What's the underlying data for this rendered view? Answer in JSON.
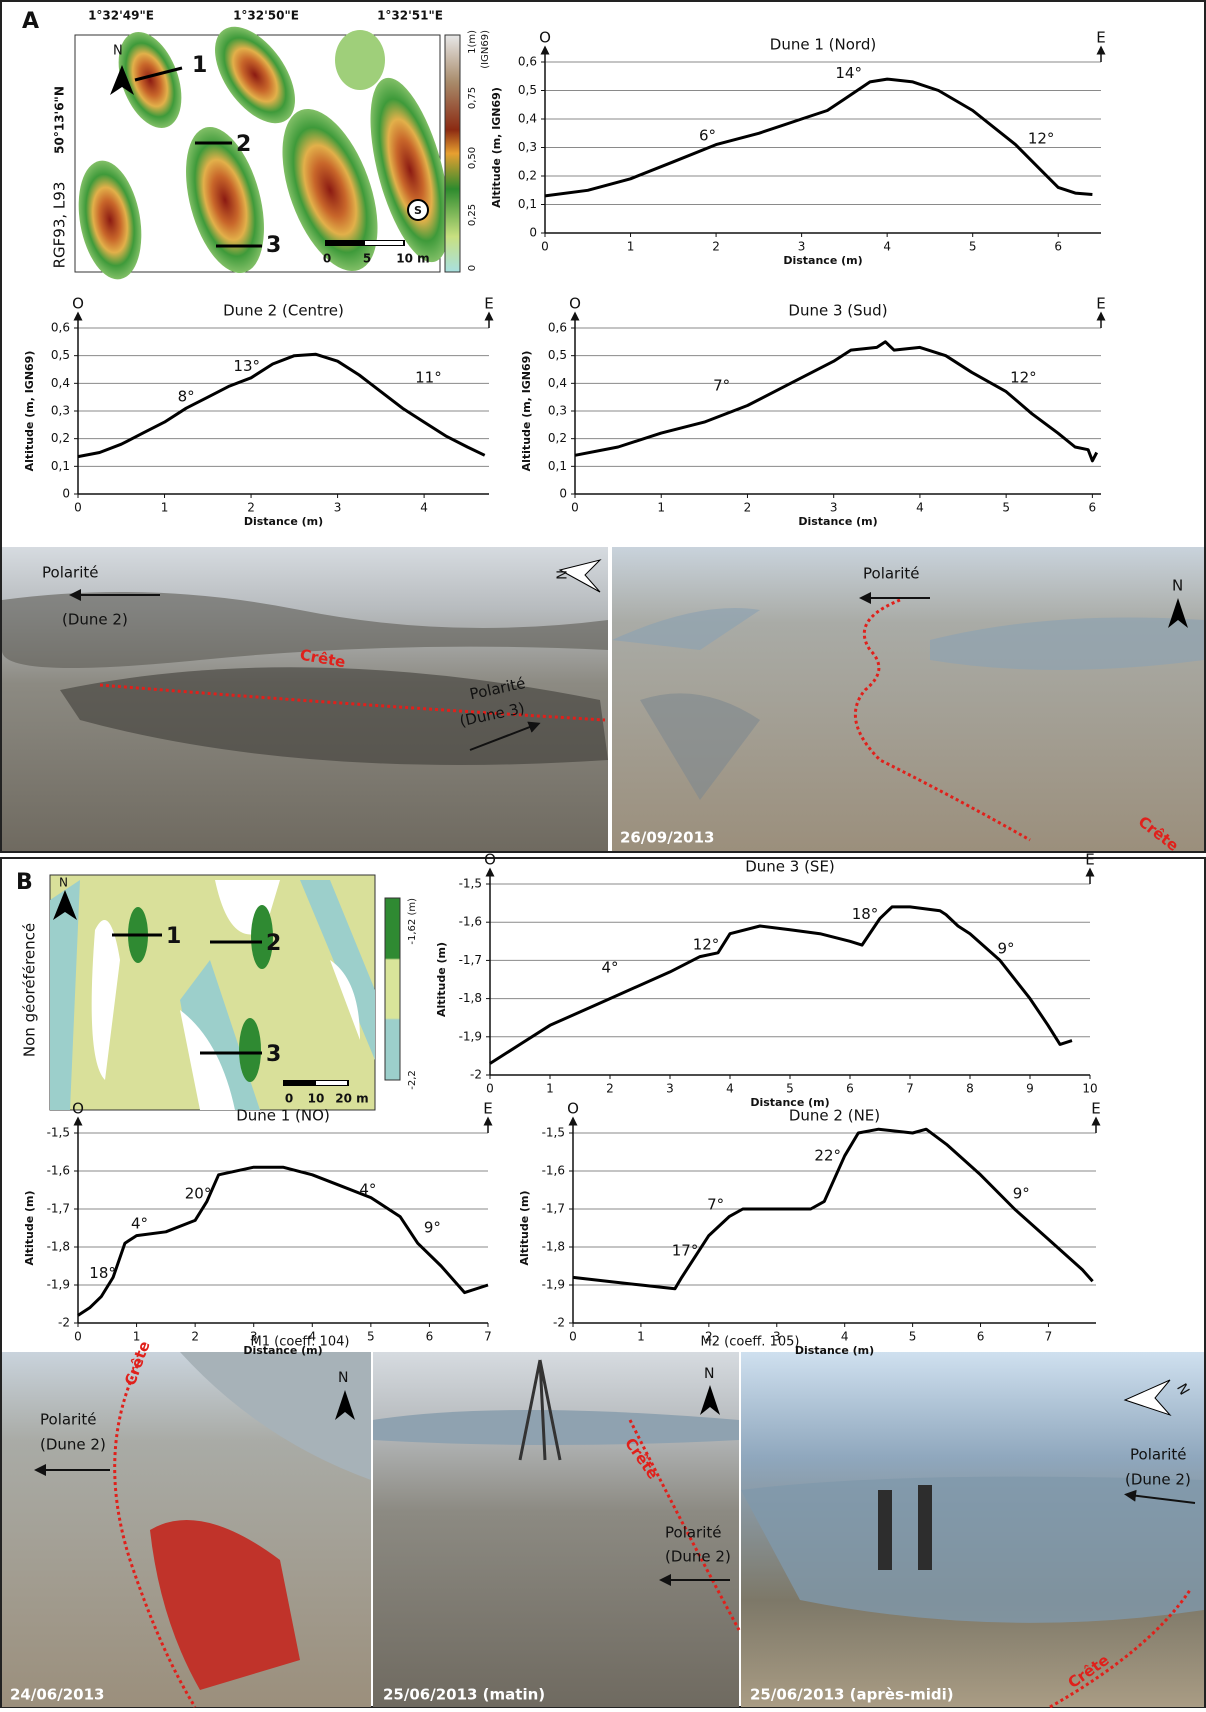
{
  "panel_a": {
    "letter": "A",
    "map": {
      "lon_labels": [
        "1°32'49\"E",
        "1°32'50\"E",
        "1°32'51\"E"
      ],
      "lat_label": "50°13'6\"N",
      "crs": "RGF93, L93",
      "colorbar": {
        "unit": "1(m)",
        "datum": "(IGN69)",
        "labels": [
          "0,75",
          "0,50",
          "0,25",
          "0"
        ]
      },
      "scale": [
        "0",
        "5",
        "10 m"
      ],
      "profiles": [
        "1",
        "2",
        "3"
      ],
      "north": "N",
      "marker": "S"
    },
    "photos": [
      {
        "polarity": "Polarité",
        "dune": "(Dune 2)",
        "crest": "Crête",
        "polarity_2": "Polarité",
        "dune_2": "(Dune 3)",
        "north": "N"
      },
      {
        "polarity": "Polarité",
        "crest": "Crête",
        "date": "26/09/2013",
        "north": "N"
      }
    ]
  },
  "panel_b": {
    "letter": "B",
    "map": {
      "note": "Non géoréférencé",
      "colorbar": {
        "top": "-1,62 (m)",
        "bottom": "-2,2"
      },
      "scale": [
        "0",
        "10",
        "20 m"
      ],
      "profiles": [
        "1",
        "2",
        "3"
      ],
      "north": "N"
    },
    "captions": [
      "M1 (coeff. 104)",
      "M2 (coeff. 105)"
    ],
    "photos": [
      {
        "crest": "Crête",
        "polarity": "Polarité",
        "dune": "(Dune 2)",
        "date": "24/06/2013",
        "north": "N"
      },
      {
        "crest": "Crête",
        "polarity": "Polarité",
        "dune": "(Dune 2)",
        "date": "25/06/2013 (matin)",
        "north": "N"
      },
      {
        "polarity": "Polarité",
        "dune": "(Dune 2)",
        "crest": "Crête",
        "date": "25/06/2013 (après-midi)",
        "north": "N"
      }
    ]
  },
  "chart_data": [
    {
      "type": "line",
      "title": "Dune 1 (Nord)",
      "left_label": "O",
      "right_label": "E",
      "ylabel": "Altitude (m, IGN69)",
      "xlabel": "Distance (m)",
      "color": "#000000",
      "grid": true,
      "x": [
        0,
        0.5,
        1,
        1.5,
        2,
        2.5,
        3,
        3.3,
        3.5,
        3.8,
        4,
        4.3,
        4.6,
        5,
        5.5,
        5.8,
        6,
        6.2,
        6.4
      ],
      "values": [
        0.13,
        0.15,
        0.19,
        0.25,
        0.31,
        0.35,
        0.4,
        0.43,
        0.47,
        0.53,
        0.54,
        0.53,
        0.5,
        0.43,
        0.31,
        0.22,
        0.16,
        0.14,
        0.135
      ],
      "annotations": [
        "6°",
        "14°",
        "12°"
      ],
      "xlim": [
        0,
        6.5
      ],
      "ylim": [
        0,
        0.6
      ],
      "xticks": [
        0,
        1,
        2,
        3,
        4,
        5,
        6
      ],
      "yticks": [
        0,
        {
          "value": 0.1,
          "label": "0,1"
        },
        {
          "value": 0.2,
          "label": "0,2"
        },
        {
          "value": 0.3,
          "label": "0,3"
        },
        {
          "value": 0.4,
          "label": "0,4"
        },
        {
          "value": 0.5,
          "label": "0,5"
        },
        {
          "value": 0.6,
          "label": "0,6"
        }
      ]
    },
    {
      "type": "line",
      "title": "Dune 2 (Centre)",
      "left_label": "O",
      "right_label": "E",
      "ylabel": "Altitude (m, IGN69)",
      "xlabel": "Distance (m)",
      "color": "#000000",
      "grid": true,
      "x": [
        0,
        0.25,
        0.5,
        0.75,
        1,
        1.25,
        1.5,
        1.75,
        2,
        2.25,
        2.5,
        2.75,
        3,
        3.25,
        3.5,
        3.75,
        4,
        4.25,
        4.5,
        4.7
      ],
      "values": [
        0.135,
        0.15,
        0.18,
        0.22,
        0.26,
        0.31,
        0.35,
        0.39,
        0.42,
        0.47,
        0.5,
        0.505,
        0.48,
        0.43,
        0.37,
        0.31,
        0.26,
        0.21,
        0.17,
        0.14
      ],
      "annotations": [
        "8°",
        "13°",
        "11°"
      ],
      "xlim": [
        0,
        4.75
      ],
      "ylim": [
        0,
        0.6
      ],
      "xticks": [
        0,
        1,
        2,
        3,
        4
      ],
      "yticks": [
        0,
        {
          "value": 0.1,
          "label": "0,1"
        },
        {
          "value": 0.2,
          "label": "0,2"
        },
        {
          "value": 0.3,
          "label": "0,3"
        },
        {
          "value": 0.4,
          "label": "0,4"
        },
        {
          "value": 0.5,
          "label": "0,5"
        },
        {
          "value": 0.6,
          "label": "0,6"
        }
      ]
    },
    {
      "type": "line",
      "title": "Dune 3 (Sud)",
      "left_label": "O",
      "right_label": "E",
      "ylabel": "Altitude (m, IGN69)",
      "xlabel": "Distance (m)",
      "color": "#000000",
      "grid": true,
      "x": [
        0,
        0.5,
        1,
        1.5,
        2,
        2.5,
        3,
        3.2,
        3.5,
        3.6,
        3.7,
        4,
        4.3,
        4.6,
        5,
        5.3,
        5.6,
        5.8,
        5.95,
        6,
        6.05
      ],
      "values": [
        0.14,
        0.17,
        0.22,
        0.26,
        0.32,
        0.4,
        0.48,
        0.52,
        0.53,
        0.55,
        0.52,
        0.53,
        0.5,
        0.44,
        0.37,
        0.29,
        0.22,
        0.17,
        0.16,
        0.12,
        0.15
      ],
      "annotations": [
        "7°",
        "12°"
      ],
      "xlim": [
        0,
        6.1
      ],
      "ylim": [
        0,
        0.6
      ],
      "xticks": [
        0,
        1,
        2,
        3,
        4,
        5,
        6
      ],
      "yticks": [
        0,
        {
          "value": 0.1,
          "label": "0,1"
        },
        {
          "value": 0.2,
          "label": "0,2"
        },
        {
          "value": 0.3,
          "label": "0,3"
        },
        {
          "value": 0.4,
          "label": "0,4"
        },
        {
          "value": 0.5,
          "label": "0,5"
        },
        {
          "value": 0.6,
          "label": "0,6"
        }
      ]
    },
    {
      "type": "line",
      "title": "Dune 3 (SE)",
      "left_label": "O",
      "right_label": "E",
      "ylabel": "Altitude (m)",
      "xlabel": "Distance (m)",
      "color": "#000000",
      "grid": true,
      "x": [
        0,
        0.5,
        1,
        2,
        3,
        3.5,
        3.8,
        4,
        4.5,
        5,
        5.5,
        6,
        6.2,
        6.5,
        6.7,
        7,
        7.5,
        7.6,
        7.8,
        8,
        8.5,
        9,
        9.3,
        9.5,
        9.7
      ],
      "values": [
        -1.97,
        -1.92,
        -1.87,
        -1.8,
        -1.73,
        -1.69,
        -1.68,
        -1.63,
        -1.61,
        -1.62,
        -1.63,
        -1.65,
        -1.66,
        -1.59,
        -1.56,
        -1.56,
        -1.57,
        -1.58,
        -1.61,
        -1.63,
        -1.7,
        -1.8,
        -1.87,
        -1.92,
        -1.91
      ],
      "annotations": [
        "4°",
        "12°",
        "18°",
        "9°"
      ],
      "xlim": [
        0,
        10
      ],
      "ylim": [
        -2,
        -1.5
      ],
      "xticks": [
        0,
        1,
        2,
        3,
        4,
        5,
        6,
        7,
        8,
        9,
        10
      ],
      "yticks": [
        -2,
        {
          "value": -1.9,
          "label": "-1,9"
        },
        {
          "value": -1.8,
          "label": "-1,8"
        },
        {
          "value": -1.7,
          "label": "-1,7"
        },
        {
          "value": -1.6,
          "label": "-1,6"
        },
        {
          "value": -1.5,
          "label": "-1,5"
        }
      ]
    },
    {
      "type": "line",
      "title": "Dune 1 (NO)",
      "left_label": "O",
      "right_label": "E",
      "ylabel": "Altitude (m)",
      "xlabel": "Distance (m)",
      "color": "#000000",
      "grid": true,
      "x": [
        0,
        0.2,
        0.4,
        0.6,
        0.8,
        1,
        1.5,
        2,
        2.2,
        2.4,
        3,
        3.5,
        4,
        4.5,
        5,
        5.5,
        5.8,
        6.2,
        6.6,
        7
      ],
      "values": [
        -1.98,
        -1.96,
        -1.93,
        -1.88,
        -1.79,
        -1.77,
        -1.76,
        -1.73,
        -1.68,
        -1.61,
        -1.59,
        -1.59,
        -1.61,
        -1.64,
        -1.67,
        -1.72,
        -1.79,
        -1.85,
        -1.92,
        -1.9
      ],
      "annotations": [
        "18°",
        "4°",
        "20°",
        "4°",
        "9°"
      ],
      "xlim": [
        0,
        7
      ],
      "ylim": [
        -2,
        -1.5
      ],
      "xticks": [
        0,
        1,
        2,
        3,
        4,
        5,
        6,
        7
      ],
      "yticks": [
        -2,
        {
          "value": -1.9,
          "label": "-1,9"
        },
        {
          "value": -1.8,
          "label": "-1,8"
        },
        {
          "value": -1.7,
          "label": "-1,7"
        },
        {
          "value": -1.6,
          "label": "-1,6"
        },
        {
          "value": -1.5,
          "label": "-1,5"
        }
      ]
    },
    {
      "type": "line",
      "title": "Dune 2 (NE)",
      "left_label": "O",
      "right_label": "E",
      "ylabel": "Altitude (m)",
      "xlabel": "Distance (m)",
      "color": "#000000",
      "grid": true,
      "x": [
        0,
        0.5,
        1,
        1.5,
        1.6,
        2,
        2.3,
        2.5,
        3,
        3.5,
        3.7,
        4,
        4.2,
        4.5,
        5,
        5.2,
        5.5,
        6,
        6.5,
        7,
        7.5,
        7.65
      ],
      "values": [
        -1.88,
        -1.89,
        -1.9,
        -1.91,
        -1.88,
        -1.77,
        -1.72,
        -1.7,
        -1.7,
        -1.7,
        -1.68,
        -1.56,
        -1.5,
        -1.49,
        -1.5,
        -1.49,
        -1.53,
        -1.61,
        -1.7,
        -1.78,
        -1.86,
        -1.89
      ],
      "annotations": [
        "17°",
        "7°",
        "22°",
        "9°"
      ],
      "xlim": [
        0,
        7.7
      ],
      "ylim": [
        -2,
        -1.5
      ],
      "xticks": [
        0,
        1,
        2,
        3,
        4,
        5,
        6,
        7
      ],
      "yticks": [
        -2,
        {
          "value": -1.9,
          "label": "-1,9"
        },
        {
          "value": -1.8,
          "label": "-1,8"
        },
        {
          "value": -1.7,
          "label": "-1,7"
        },
        {
          "value": -1.6,
          "label": "-1,6"
        },
        {
          "value": -1.5,
          "label": "-1,5"
        }
      ]
    }
  ]
}
